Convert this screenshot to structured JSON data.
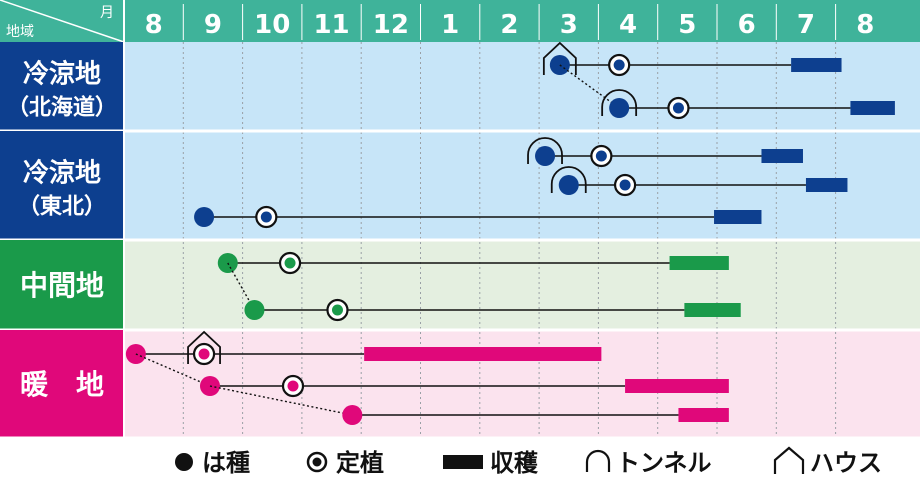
{
  "header": {
    "corner_region_label": "地域",
    "corner_month_label": "月",
    "months": [
      "8",
      "9",
      "10",
      "11",
      "12",
      "1",
      "2",
      "3",
      "4",
      "5",
      "6",
      "7",
      "8"
    ]
  },
  "regions": [
    {
      "name_line1": "冷涼地",
      "name_line2": "（北海道）",
      "bg": "#c7e5f8",
      "label_bg": "#0d3f8f",
      "accent": "#0d3f8f"
    },
    {
      "name_line1": "冷涼地",
      "name_line2": "（東北）",
      "bg": "#c7e5f8",
      "label_bg": "#0d3f8f",
      "accent": "#0d3f8f"
    },
    {
      "name_line1": "中間地",
      "name_line2": "",
      "bg": "#e4efe0",
      "label_bg": "#1a9a4a",
      "accent": "#1a9a4a"
    },
    {
      "name_line1": "暖　地",
      "name_line2": "",
      "bg": "#fbe3ee",
      "label_bg": "#e0087a",
      "accent": "#e0087a"
    }
  ],
  "legend": {
    "sowing": "は種",
    "planting": "定植",
    "harvest": "収穫",
    "tunnel": "トンネル",
    "house": "ハウス"
  },
  "colors": {
    "header_bg": "#3fb39a",
    "grid_line": "#9aa0a6",
    "blue": "#0d3f8f",
    "green": "#1a9a4a",
    "pink": "#e0087a"
  },
  "schedule": [
    {
      "region": 0,
      "color": "blue",
      "sow": 7.35,
      "plant": 8.35,
      "harvest": [
        11.25,
        12.1
      ],
      "cover_at": "sow",
      "cover": "house"
    },
    {
      "region": 0,
      "color": "blue",
      "sow": 8.35,
      "plant": 9.35,
      "harvest": [
        12.25,
        13.0
      ],
      "cover_at": "sow",
      "cover": "tunnel",
      "link_from_prev": true
    },
    {
      "region": 1,
      "color": "blue",
      "sow": 7.1,
      "plant": 8.05,
      "harvest": [
        10.75,
        11.45
      ],
      "cover_at": "sow",
      "cover": "tunnel"
    },
    {
      "region": 1,
      "color": "blue",
      "sow": 7.5,
      "plant": 8.45,
      "harvest": [
        11.5,
        12.2
      ],
      "cover_at": "sow",
      "cover": "tunnel"
    },
    {
      "region": 1,
      "color": "blue",
      "sow": 1.35,
      "plant": 2.4,
      "harvest": [
        9.95,
        10.75
      ]
    },
    {
      "region": 2,
      "color": "green",
      "sow": 1.75,
      "plant": 2.8,
      "harvest": [
        9.2,
        10.2
      ]
    },
    {
      "region": 2,
      "color": "green",
      "sow": 2.2,
      "plant": 3.6,
      "harvest": [
        9.45,
        10.4
      ],
      "link_from_prev": true
    },
    {
      "region": 3,
      "color": "pink",
      "sow": 0.2,
      "plant": 1.35,
      "harvest": [
        4.05,
        8.05
      ],
      "cover_at": "plant",
      "cover": "house",
      "plant_after_sow": true
    },
    {
      "region": 3,
      "color": "pink",
      "sow": 1.45,
      "plant": 2.85,
      "harvest": [
        8.45,
        10.2
      ],
      "link_from_prev": true
    },
    {
      "region": 3,
      "color": "pink",
      "sow": 3.85,
      "harvest": [
        9.35,
        10.2
      ],
      "link_from_prev": true
    }
  ]
}
